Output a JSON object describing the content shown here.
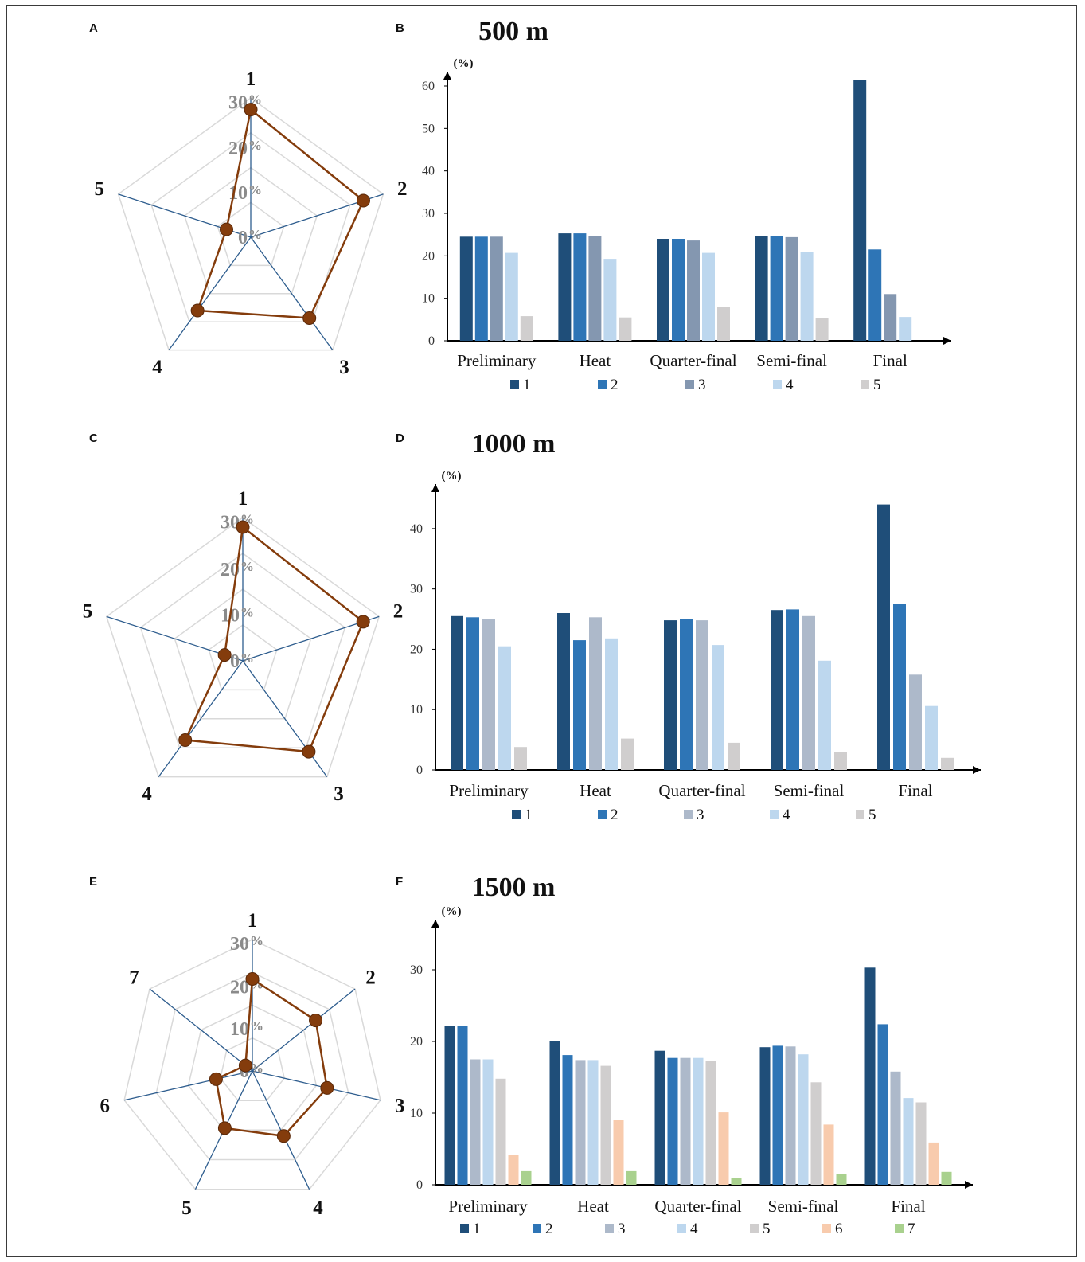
{
  "colors": {
    "g1": "#1f4e79",
    "g2": "#2e75b6",
    "g3a": "#8497b0",
    "g3b": "#adb9ca",
    "g4": "#bdd7ee",
    "g5": "#d0cece",
    "g6": "#f8cbad",
    "g7": "#a9d18e",
    "radar_line": "#843c0c",
    "radar_spoke": "#2e5d8e",
    "radar_grid": "#d9d9d9"
  },
  "panels": {
    "A": "A",
    "B": "B",
    "C": "C",
    "D": "D",
    "E": "E",
    "F": "F"
  },
  "radar_ring_labels": [
    "0%",
    "10%",
    "20%",
    "30%"
  ],
  "chart_data": [
    {
      "id": "A",
      "type": "radar",
      "axes": [
        "1",
        "2",
        "3",
        "4",
        "5"
      ],
      "rmax": 30,
      "values": [
        27.5,
        25.5,
        21.5,
        19.5,
        5.5
      ]
    },
    {
      "id": "B",
      "type": "bar",
      "title": "500 m",
      "ylabel": "(%)",
      "ylim": [
        0,
        60
      ],
      "yticks": [
        0,
        10,
        20,
        30,
        40,
        50,
        60
      ],
      "categories": [
        "Preliminary",
        "Heat",
        "Quarter-final",
        "Semi-final",
        "Final"
      ],
      "series": [
        {
          "name": "1",
          "color_key": "g1",
          "values": [
            24.5,
            25.3,
            24.0,
            24.7,
            61.5
          ]
        },
        {
          "name": "2",
          "color_key": "g2",
          "values": [
            24.5,
            25.3,
            24.0,
            24.7,
            21.5
          ]
        },
        {
          "name": "3",
          "color_key": "g3a",
          "values": [
            24.5,
            24.7,
            23.6,
            24.4,
            11.0
          ]
        },
        {
          "name": "4",
          "color_key": "g4",
          "values": [
            20.7,
            19.3,
            20.7,
            21.0,
            5.6
          ]
        },
        {
          "name": "5",
          "color_key": "g5",
          "values": [
            5.8,
            5.5,
            7.9,
            5.4,
            0
          ]
        }
      ]
    },
    {
      "id": "C",
      "type": "radar",
      "axes": [
        "1",
        "2",
        "3",
        "4",
        "5"
      ],
      "rmax": 30,
      "values": [
        28.0,
        26.5,
        23.5,
        20.5,
        4.0
      ]
    },
    {
      "id": "D",
      "type": "bar",
      "title": "1000 m",
      "ylabel": "(%)",
      "ylim": [
        0,
        45
      ],
      "yticks": [
        0,
        10,
        20,
        30,
        40
      ],
      "categories": [
        "Preliminary",
        "Heat",
        "Quarter-final",
        "Semi-final",
        "Final"
      ],
      "series": [
        {
          "name": "1",
          "color_key": "g1",
          "values": [
            25.5,
            26.0,
            24.8,
            26.5,
            44.0
          ]
        },
        {
          "name": "2",
          "color_key": "g2",
          "values": [
            25.3,
            21.5,
            25.0,
            26.6,
            27.5
          ]
        },
        {
          "name": "3",
          "color_key": "g3b",
          "values": [
            25.0,
            25.3,
            24.8,
            25.5,
            15.8
          ]
        },
        {
          "name": "4",
          "color_key": "g4",
          "values": [
            20.5,
            21.8,
            20.7,
            18.1,
            10.6
          ]
        },
        {
          "name": "5",
          "color_key": "g5",
          "values": [
            3.8,
            5.2,
            4.5,
            3.0,
            2.0
          ]
        }
      ]
    },
    {
      "id": "E",
      "type": "radar",
      "axes": [
        "1",
        "2",
        "3",
        "4",
        "5",
        "6",
        "7"
      ],
      "rmax": 30,
      "values": [
        21.0,
        18.5,
        17.5,
        16.5,
        14.5,
        8.5,
        2.0
      ]
    },
    {
      "id": "F",
      "type": "bar",
      "title": "1500 m",
      "ylabel": "(%)",
      "ylim": [
        0,
        35
      ],
      "yticks": [
        0,
        10,
        20,
        30
      ],
      "categories": [
        "Preliminary",
        "Heat",
        "Quarter-final",
        "Semi-final",
        "Final"
      ],
      "series": [
        {
          "name": "1",
          "color_key": "g1",
          "values": [
            22.2,
            20.0,
            18.7,
            19.2,
            30.3
          ]
        },
        {
          "name": "2",
          "color_key": "g2",
          "values": [
            22.2,
            18.1,
            17.7,
            19.4,
            22.4
          ]
        },
        {
          "name": "3",
          "color_key": "g3b",
          "values": [
            17.5,
            17.4,
            17.7,
            19.3,
            15.8
          ]
        },
        {
          "name": "4",
          "color_key": "g4",
          "values": [
            17.5,
            17.4,
            17.7,
            18.2,
            12.1
          ]
        },
        {
          "name": "5",
          "color_key": "g5",
          "values": [
            14.8,
            16.6,
            17.3,
            14.3,
            11.5
          ]
        },
        {
          "name": "6",
          "color_key": "g6",
          "values": [
            4.2,
            9.0,
            10.1,
            8.4,
            5.9
          ]
        },
        {
          "name": "7",
          "color_key": "g7",
          "values": [
            1.9,
            1.9,
            1.0,
            1.5,
            1.8
          ]
        }
      ]
    }
  ]
}
